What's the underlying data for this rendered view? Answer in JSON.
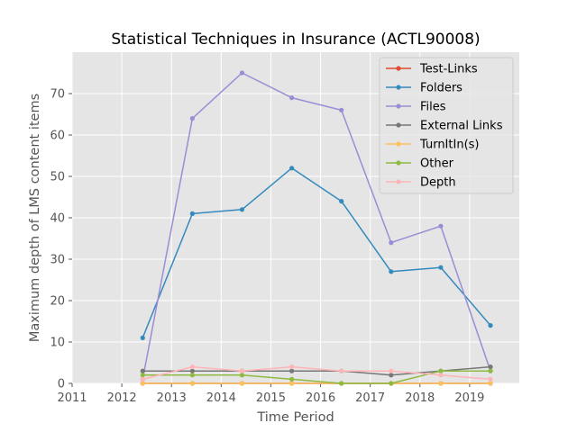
{
  "chart_data": {
    "type": "line",
    "title": "Statistical Techniques in Insurance (ACTL90008)",
    "xlabel": "Time Period",
    "ylabel": "Maximum depth of LMS content items",
    "xlim": [
      2011,
      2020
    ],
    "ylim": [
      0,
      80
    ],
    "xticks": [
      2011,
      2012,
      2013,
      2014,
      2015,
      2016,
      2017,
      2018,
      2019
    ],
    "yticks": [
      0,
      10,
      20,
      30,
      40,
      50,
      60,
      70
    ],
    "grid": true,
    "legend_position": "top-right",
    "x": [
      2012.42,
      2013.42,
      2014.42,
      2015.42,
      2016.42,
      2017.42,
      2018.42,
      2019.42
    ],
    "series": [
      {
        "name": "Test-Links",
        "color": "#e24a33",
        "values": [
          0,
          0,
          0,
          0,
          0,
          0,
          0,
          0
        ]
      },
      {
        "name": "Folders",
        "color": "#348abd",
        "values": [
          11,
          41,
          42,
          52,
          44,
          27,
          28,
          14
        ]
      },
      {
        "name": "Files",
        "color": "#988ed5",
        "values": [
          1,
          64,
          75,
          69,
          66,
          34,
          38,
          3
        ]
      },
      {
        "name": "External Links",
        "color": "#777777",
        "values": [
          3,
          3,
          3,
          3,
          3,
          2,
          3,
          4
        ]
      },
      {
        "name": "TurnItIn(s)",
        "color": "#fbc15e",
        "values": [
          0,
          0,
          0,
          0,
          0,
          0,
          0,
          0
        ]
      },
      {
        "name": "Other",
        "color": "#8eba42",
        "values": [
          2,
          2,
          2,
          1,
          0,
          0,
          3,
          3
        ]
      },
      {
        "name": "Depth",
        "color": "#ffb5b8",
        "values": [
          1,
          4,
          3,
          4,
          3,
          3,
          2,
          1
        ]
      }
    ]
  }
}
